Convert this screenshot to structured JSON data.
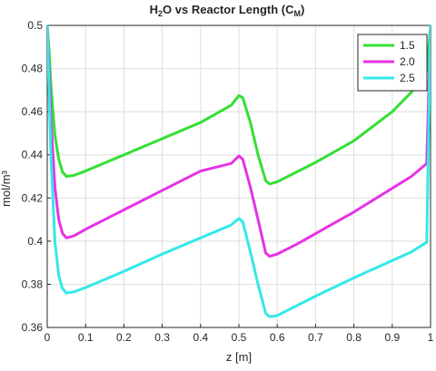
{
  "chart_data": {
    "type": "line",
    "title_parts": {
      "pre": "H",
      "sub1": "2",
      "mid": "O vs Reactor Length (C",
      "sub2": "M",
      "post": ")"
    },
    "xlabel": "z [m]",
    "ylabel": "mol/m³",
    "xlim": [
      0,
      1
    ],
    "ylim": [
      0.36,
      0.5
    ],
    "xticks": [
      "0",
      "0.1",
      "0.2",
      "0.3",
      "0.4",
      "0.5",
      "0.6",
      "0.7",
      "0.8",
      "0.9",
      "1"
    ],
    "yticks": [
      "0.36",
      "0.38",
      "0.4",
      "0.42",
      "0.44",
      "0.46",
      "0.48",
      "0.5"
    ],
    "grid": true,
    "legend_position": "top-right",
    "series": [
      {
        "name": "1.5",
        "color": "#33e033",
        "x": [
          0,
          0.005,
          0.01,
          0.02,
          0.03,
          0.04,
          0.05,
          0.07,
          0.1,
          0.2,
          0.3,
          0.4,
          0.48,
          0.5,
          0.51,
          0.53,
          0.55,
          0.57,
          0.58,
          0.6,
          0.65,
          0.7,
          0.8,
          0.9,
          0.95,
          0.99,
          1.0
        ],
        "y": [
          0.5,
          0.488,
          0.471,
          0.449,
          0.438,
          0.432,
          0.43,
          0.4305,
          0.4325,
          0.44,
          0.4475,
          0.455,
          0.463,
          0.4675,
          0.4665,
          0.455,
          0.44,
          0.428,
          0.4265,
          0.4275,
          0.432,
          0.4365,
          0.4465,
          0.46,
          0.469,
          0.479,
          0.5
        ]
      },
      {
        "name": "2.0",
        "color": "#e632e6",
        "x": [
          0,
          0.005,
          0.01,
          0.02,
          0.03,
          0.04,
          0.05,
          0.07,
          0.1,
          0.2,
          0.3,
          0.4,
          0.48,
          0.5,
          0.51,
          0.53,
          0.55,
          0.57,
          0.58,
          0.6,
          0.65,
          0.7,
          0.8,
          0.9,
          0.95,
          0.99,
          1.0
        ],
        "y": [
          0.5,
          0.478,
          0.455,
          0.425,
          0.41,
          0.4035,
          0.4015,
          0.4025,
          0.4055,
          0.4145,
          0.4235,
          0.4325,
          0.436,
          0.4395,
          0.438,
          0.425,
          0.41,
          0.3945,
          0.393,
          0.394,
          0.3985,
          0.4035,
          0.4135,
          0.4245,
          0.43,
          0.436,
          0.5
        ]
      },
      {
        "name": "2.5",
        "color": "#33e8e8",
        "x": [
          0,
          0.005,
          0.01,
          0.02,
          0.03,
          0.04,
          0.05,
          0.07,
          0.1,
          0.2,
          0.3,
          0.4,
          0.48,
          0.5,
          0.51,
          0.53,
          0.55,
          0.57,
          0.58,
          0.6,
          0.65,
          0.7,
          0.8,
          0.9,
          0.95,
          0.99,
          1.0
        ],
        "y": [
          0.5,
          0.468,
          0.438,
          0.4,
          0.384,
          0.378,
          0.376,
          0.3765,
          0.3785,
          0.386,
          0.394,
          0.4015,
          0.4075,
          0.4105,
          0.409,
          0.395,
          0.38,
          0.3665,
          0.365,
          0.3655,
          0.37,
          0.3745,
          0.383,
          0.391,
          0.395,
          0.3995,
          0.5
        ]
      }
    ]
  }
}
